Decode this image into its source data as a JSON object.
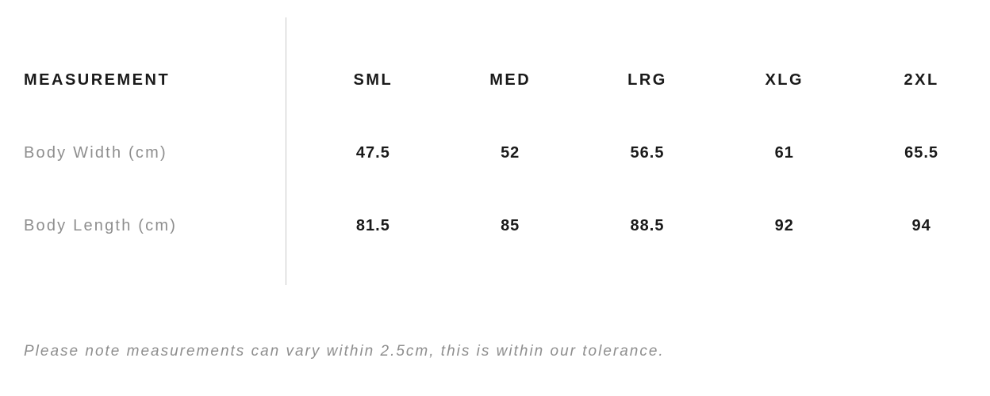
{
  "table": {
    "measurement_header": "MEASUREMENT",
    "columns": [
      "SML",
      "MED",
      "LRG",
      "XLG",
      "2XL"
    ],
    "rows": [
      {
        "label": "Body Width (cm)",
        "values": [
          "47.5",
          "52",
          "56.5",
          "61",
          "65.5"
        ]
      },
      {
        "label": "Body Length (cm)",
        "values": [
          "81.5",
          "85",
          "88.5",
          "92",
          "94"
        ]
      }
    ]
  },
  "note": {
    "text": "Please note measurements can vary within 2.5cm, this is within our tolerance."
  },
  "colors": {
    "text_primary": "#1a1a1a",
    "text_secondary": "#8e8e8e",
    "divider": "#c9c9c9"
  }
}
